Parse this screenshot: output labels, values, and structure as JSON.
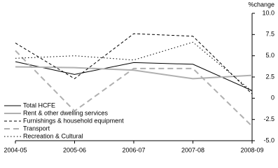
{
  "chart_data": {
    "type": "line",
    "y_axis_label": "%change",
    "categories": [
      "2004-05",
      "2005-06",
      "2006-07",
      "2007-08",
      "2008-09"
    ],
    "series": [
      {
        "name": "Total HCFE",
        "color": "#000000",
        "style": "solid",
        "values": [
          4.3,
          2.8,
          4.2,
          4.0,
          0.9
        ]
      },
      {
        "name": "Rent & other dwelling services",
        "color": "#b0b0b0",
        "style": "solid",
        "values": [
          3.7,
          3.6,
          3.3,
          2.3,
          2.7
        ]
      },
      {
        "name": "Furnishings & household equipment",
        "color": "#000000",
        "style": "dashed",
        "values": [
          6.5,
          2.3,
          7.6,
          7.3,
          0.5
        ]
      },
      {
        "name": "Transport",
        "color": "#b0b0b0",
        "style": "longdash",
        "values": [
          5.6,
          -1.5,
          3.5,
          3.5,
          -3.3
        ]
      },
      {
        "name": "Recreation & Cultural",
        "color": "#000000",
        "style": "dotted",
        "values": [
          4.7,
          5.0,
          4.5,
          6.6,
          0.8
        ]
      }
    ],
    "ylim": [
      -5,
      10
    ],
    "yticks": [
      {
        "value": 10,
        "label": "10.0"
      },
      7.5,
      {
        "value": 5,
        "label": "5.0"
      },
      2.5,
      0,
      -2.5,
      {
        "value": -5,
        "label": "-5.0"
      }
    ],
    "y_axis_side": "right",
    "grid": false,
    "legend": "lower-left"
  }
}
